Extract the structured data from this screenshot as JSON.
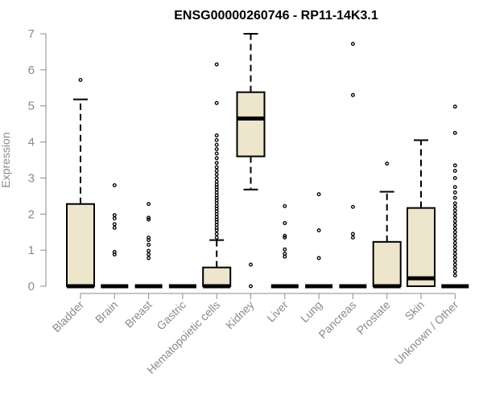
{
  "chart_data": {
    "type": "boxplot",
    "title": "ENSG00000260746 - RP11-14K3.1",
    "xlabel": "",
    "ylabel": "Expression",
    "ylim": [
      0,
      7
    ],
    "yticks": [
      "0",
      "1",
      "2",
      "3",
      "4",
      "5",
      "6",
      "7"
    ],
    "box_fill": "#ede5cc",
    "categories": [
      "Bladder",
      "Brain",
      "Breast",
      "Gastric",
      "Hematopoietic cells",
      "Kidney",
      "Liver",
      "Lung",
      "Pancreas",
      "Prostate",
      "Skin",
      "Unknown / Other"
    ],
    "boxes": [
      {
        "min": 0,
        "q1": 0,
        "median": 0,
        "q3": 2.28,
        "max": 5.18,
        "outliers": [
          5.72
        ]
      },
      {
        "min": 0,
        "q1": 0,
        "median": 0,
        "q3": 0,
        "max": 0,
        "outliers": [
          0.88,
          0.95,
          1.62,
          1.72,
          1.88,
          1.97,
          2.8
        ]
      },
      {
        "min": 0,
        "q1": 0,
        "median": 0,
        "q3": 0,
        "max": 0,
        "outliers": [
          0.78,
          0.88,
          0.98,
          1.15,
          1.28,
          1.35,
          1.85,
          1.9,
          2.28
        ]
      },
      {
        "min": 0,
        "q1": 0,
        "median": 0,
        "q3": 0,
        "max": 0,
        "outliers": []
      },
      {
        "min": 0,
        "q1": 0,
        "median": 0,
        "q3": 0.52,
        "max": 1.28,
        "outliers": [
          1.35,
          1.45,
          1.55,
          1.62,
          1.7,
          1.78,
          1.85,
          1.92,
          2.0,
          2.08,
          2.15,
          2.22,
          2.3,
          2.38,
          2.45,
          2.52,
          2.6,
          2.68,
          2.75,
          2.82,
          2.9,
          3.0,
          3.1,
          3.2,
          3.3,
          3.42,
          3.55,
          3.68,
          3.8,
          3.92,
          4.05,
          4.18,
          5.08,
          6.15
        ]
      },
      {
        "min": 2.68,
        "q1": 3.6,
        "median": 4.65,
        "q3": 5.38,
        "max": 7.0,
        "outliers": [
          0.0,
          0.6
        ]
      },
      {
        "min": 0,
        "q1": 0,
        "median": 0,
        "q3": 0,
        "max": 0,
        "outliers": [
          0.82,
          0.9,
          1.02,
          1.35,
          1.4,
          1.75,
          2.22
        ]
      },
      {
        "min": 0,
        "q1": 0,
        "median": 0,
        "q3": 0,
        "max": 0,
        "outliers": [
          0.78,
          1.55,
          2.55
        ]
      },
      {
        "min": 0,
        "q1": 0,
        "median": 0,
        "q3": 0,
        "max": 0,
        "outliers": [
          1.35,
          1.45,
          2.2,
          5.3,
          6.72
        ]
      },
      {
        "min": 0,
        "q1": 0,
        "median": 0,
        "q3": 1.23,
        "max": 2.62,
        "outliers": [
          3.4
        ]
      },
      {
        "min": 0,
        "q1": 0,
        "median": 0.22,
        "q3": 2.17,
        "max": 4.05,
        "outliers": []
      },
      {
        "min": 0,
        "q1": 0,
        "median": 0,
        "q3": 0,
        "max": 0,
        "outliers": [
          0.3,
          0.4,
          0.5,
          0.6,
          0.7,
          0.8,
          0.9,
          1.0,
          1.1,
          1.2,
          1.3,
          1.4,
          1.5,
          1.6,
          1.7,
          1.8,
          1.9,
          2.0,
          2.1,
          2.2,
          2.3,
          2.45,
          2.6,
          2.75,
          3.0,
          3.2,
          3.35,
          4.25,
          4.98
        ]
      }
    ]
  }
}
